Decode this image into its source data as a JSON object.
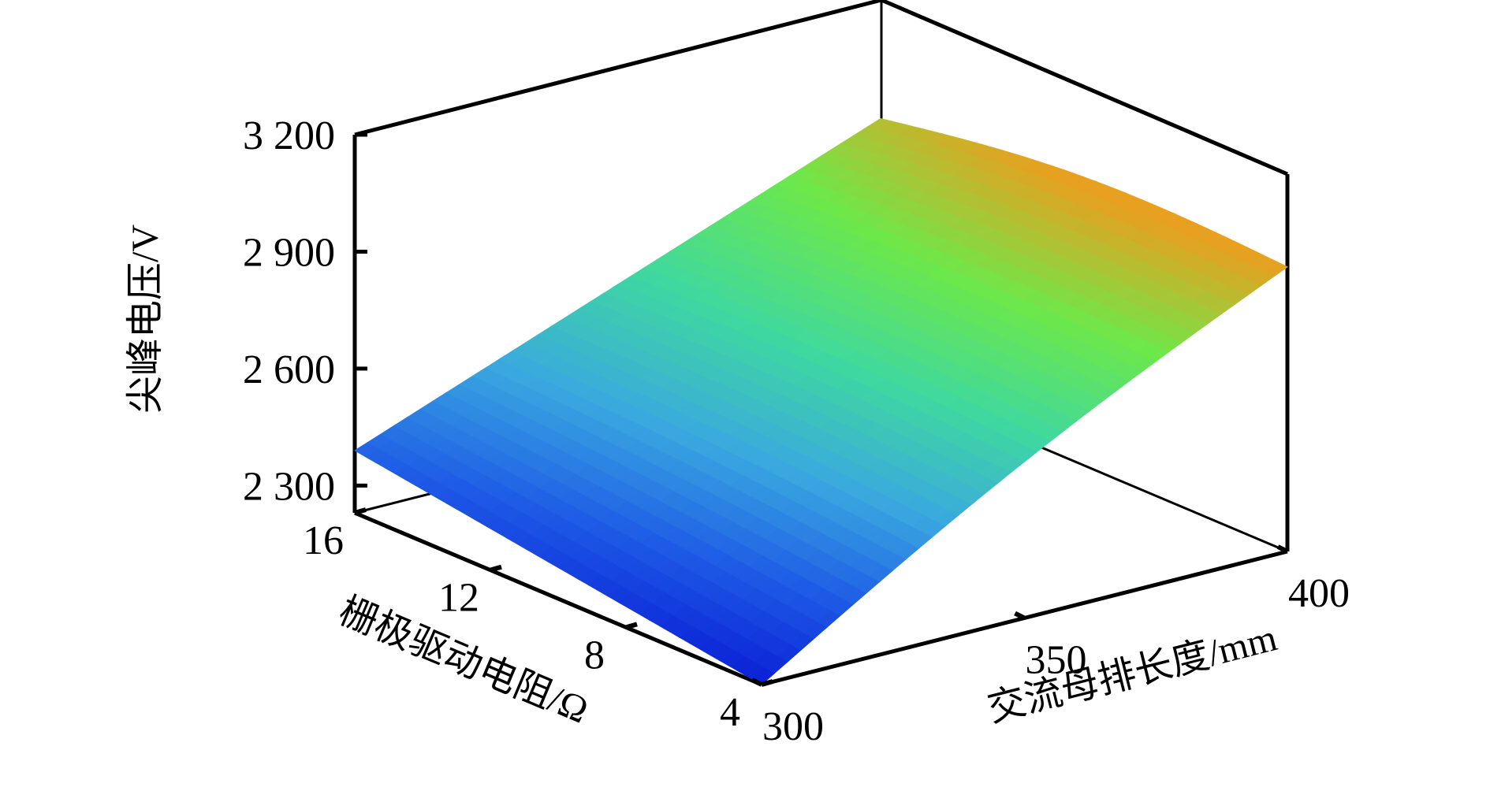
{
  "chart_data": {
    "type": "surface3d",
    "zlabel": "尖峰电压/V",
    "xlabel": "交流母排长度/mm",
    "ylabel": "栅极驱动电阻/Ω",
    "z_ticks": [
      "3 200",
      "2 900",
      "2 600",
      "2 300"
    ],
    "z_tick_values": [
      3200,
      2900,
      2600,
      2300
    ],
    "x_ticks": [
      "300",
      "350",
      "400"
    ],
    "x_tick_values": [
      300,
      350,
      400
    ],
    "y_ticks": [
      "16",
      "12",
      "8",
      "4"
    ],
    "y_tick_values": [
      16,
      12,
      8,
      4
    ],
    "x_range": [
      300,
      400
    ],
    "y_range": [
      4,
      16
    ],
    "z_range": [
      2300,
      3200
    ],
    "corner_points": [
      {
        "x": 300,
        "y": 4,
        "z": 2230
      },
      {
        "x": 300,
        "y": 16,
        "z": 2390
      },
      {
        "x": 400,
        "y": 16,
        "z": 2900
      },
      {
        "x": 400,
        "y": 4,
        "z": 2960
      }
    ],
    "colormap": [
      "#0a1fd6",
      "#1e5ae6",
      "#3aa8e0",
      "#3fd8a0",
      "#6de84a",
      "#e8a020"
    ],
    "grid": false
  }
}
